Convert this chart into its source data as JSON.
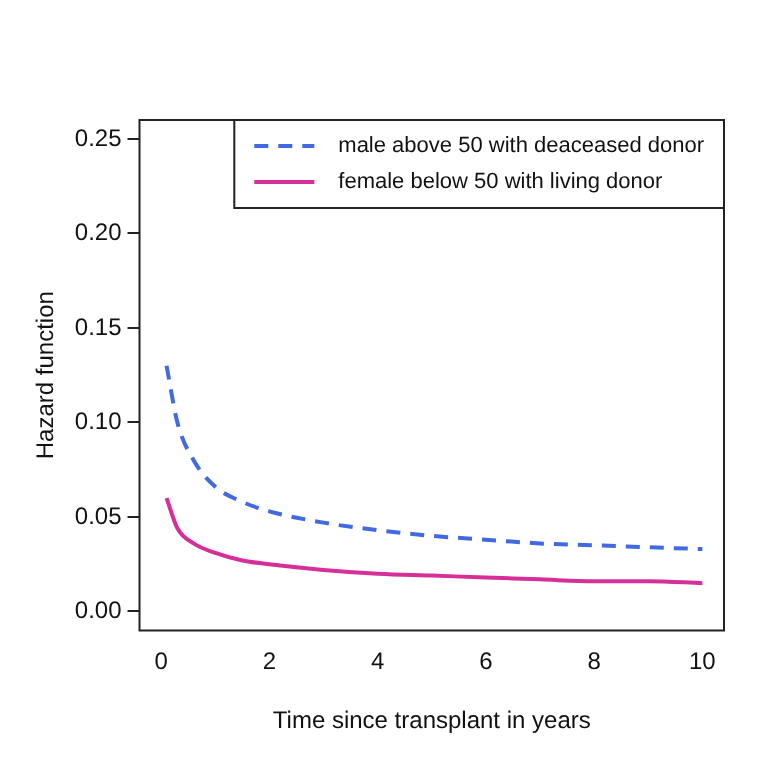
{
  "chart_data": {
    "type": "line",
    "xlabel": "Time since transplant in years",
    "ylabel": "Hazard function",
    "x": [
      0.1,
      0.3,
      0.6,
      1,
      1.5,
      2,
      3,
      4,
      5,
      6,
      7,
      8,
      9,
      10
    ],
    "series": [
      {
        "name": "male above 50 with deaceased donor",
        "color": "#4169e1",
        "line_style": "dashed",
        "values": [
          0.13,
          0.1,
          0.08,
          0.066,
          0.058,
          0.053,
          0.047,
          0.043,
          0.04,
          0.038,
          0.036,
          0.035,
          0.034,
          0.033
        ]
      },
      {
        "name": "female below 50 with living donor",
        "color": "#d62f9a",
        "line_style": "solid",
        "values": [
          0.06,
          0.044,
          0.036,
          0.031,
          0.027,
          0.025,
          0.022,
          0.02,
          0.019,
          0.018,
          0.017,
          0.016,
          0.016,
          0.015
        ]
      }
    ],
    "xlim": [
      -0.4,
      10.4
    ],
    "ylim": [
      -0.01,
      0.26
    ],
    "xticks": [
      0,
      2,
      4,
      6,
      8,
      10
    ],
    "yticks": [
      {
        "value": 0,
        "label": "0.00"
      },
      {
        "value": 0.05,
        "label": "0.05"
      },
      {
        "value": 0.1,
        "label": "0.10"
      },
      {
        "value": 0.15,
        "label": "0.15"
      },
      {
        "value": 0.2,
        "label": "0.20"
      },
      {
        "value": 0.25,
        "label": "0.25"
      }
    ],
    "grid": false,
    "legend": "top right",
    "marker": "none"
  }
}
